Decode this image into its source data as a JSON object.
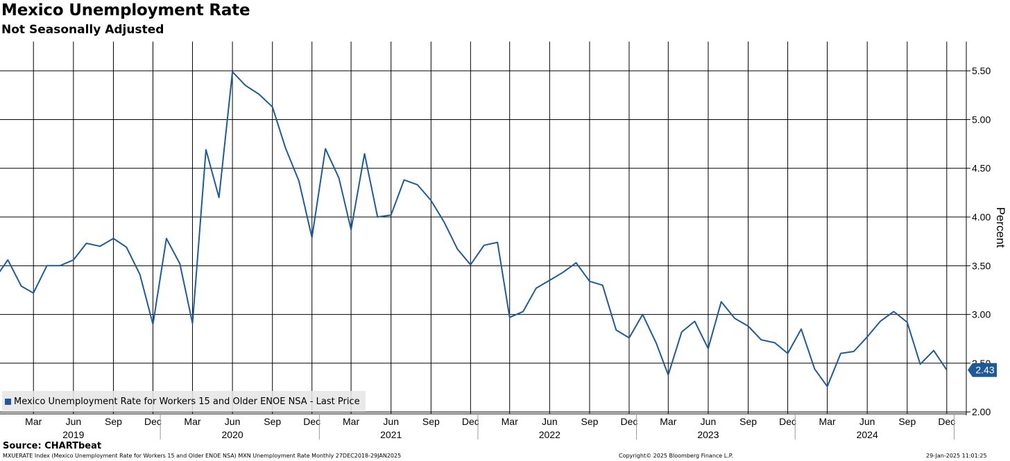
{
  "header": {
    "title": "Mexico Unemployment Rate",
    "subtitle": "Not Seasonally Adjusted"
  },
  "footer": {
    "source": "Source: CHARTbeat",
    "description": "MXUERATE Index (Mexico Unemployment Rate for Workers 15 and Older ENOE NSA) MXN Unemployment Rate  Monthly 27DEC2018-29JAN2025",
    "copyright": "Copyright© 2025 Bloomberg Finance L.P.",
    "timestamp": "29-Jan-2025 11:01:25"
  },
  "colors": {
    "series": "#1f5a96",
    "grid": "#000000",
    "background": "#ffffff"
  },
  "chart_data": {
    "type": "line",
    "ylabel": "Percent",
    "ylim": [
      1.98,
      5.8
    ],
    "xlim": [
      "2018-12-28",
      "2025-01-29"
    ],
    "y_ticks": [
      2.0,
      2.5,
      3.0,
      3.5,
      4.0,
      4.5,
      5.0,
      5.5
    ],
    "y_tick_labels": [
      "2.00",
      "2.50",
      "3.00",
      "3.50",
      "4.00",
      "4.50",
      "5.00",
      "5.50"
    ],
    "grid": true,
    "legend_position": "bottom-left",
    "x_month_ticks": [
      {
        "label": "Mar",
        "date": "2019-03-15"
      },
      {
        "label": "Jun",
        "date": "2019-06-15"
      },
      {
        "label": "Sep",
        "date": "2019-09-15"
      },
      {
        "label": "Dec",
        "date": "2019-12-15"
      },
      {
        "label": "Mar",
        "date": "2020-03-15"
      },
      {
        "label": "Jun",
        "date": "2020-06-15"
      },
      {
        "label": "Sep",
        "date": "2020-09-15"
      },
      {
        "label": "Dec",
        "date": "2020-12-15"
      },
      {
        "label": "Mar",
        "date": "2021-03-15"
      },
      {
        "label": "Jun",
        "date": "2021-06-15"
      },
      {
        "label": "Sep",
        "date": "2021-09-15"
      },
      {
        "label": "Dec",
        "date": "2021-12-15"
      },
      {
        "label": "Mar",
        "date": "2022-03-15"
      },
      {
        "label": "Jun",
        "date": "2022-06-15"
      },
      {
        "label": "Sep",
        "date": "2022-09-15"
      },
      {
        "label": "Dec",
        "date": "2022-12-15"
      },
      {
        "label": "Mar",
        "date": "2023-03-15"
      },
      {
        "label": "Jun",
        "date": "2023-06-15"
      },
      {
        "label": "Sep",
        "date": "2023-09-15"
      },
      {
        "label": "Dec",
        "date": "2023-12-15"
      },
      {
        "label": "Mar",
        "date": "2024-03-15"
      },
      {
        "label": "Jun",
        "date": "2024-06-15"
      },
      {
        "label": "Sep",
        "date": "2024-09-15"
      },
      {
        "label": "Dec",
        "date": "2024-12-15"
      }
    ],
    "x_year_labels": [
      {
        "label": "2019",
        "date": "2019-06-15"
      },
      {
        "label": "2020",
        "date": "2020-06-15"
      },
      {
        "label": "2021",
        "date": "2021-06-15"
      },
      {
        "label": "2022",
        "date": "2022-06-15"
      },
      {
        "label": "2023",
        "date": "2023-06-15"
      },
      {
        "label": "2024",
        "date": "2024-06-15"
      }
    ],
    "x_year_boundaries": [
      "2020-01-01",
      "2021-01-01",
      "2022-01-01",
      "2023-01-01",
      "2024-01-01",
      "2025-01-01"
    ],
    "series": [
      {
        "name": "Mexico Unemployment Rate for Workers 15 and Older ENOE NSA - Last Price",
        "last_value_label": "2.43",
        "x": [
          "2018-12-15",
          "2019-01-15",
          "2019-02-15",
          "2019-03-15",
          "2019-04-15",
          "2019-05-15",
          "2019-06-15",
          "2019-07-15",
          "2019-08-15",
          "2019-09-15",
          "2019-10-15",
          "2019-11-15",
          "2019-12-15",
          "2020-01-15",
          "2020-02-15",
          "2020-03-15",
          "2020-04-15",
          "2020-05-15",
          "2020-06-15",
          "2020-07-15",
          "2020-08-15",
          "2020-09-15",
          "2020-10-15",
          "2020-11-15",
          "2020-12-15",
          "2021-01-15",
          "2021-02-15",
          "2021-03-15",
          "2021-04-15",
          "2021-05-15",
          "2021-06-15",
          "2021-07-15",
          "2021-08-15",
          "2021-09-15",
          "2021-10-15",
          "2021-11-15",
          "2021-12-15",
          "2022-01-15",
          "2022-02-15",
          "2022-03-15",
          "2022-04-15",
          "2022-05-15",
          "2022-06-15",
          "2022-07-15",
          "2022-08-15",
          "2022-09-15",
          "2022-10-15",
          "2022-11-15",
          "2022-12-15",
          "2023-01-15",
          "2023-02-15",
          "2023-03-15",
          "2023-04-15",
          "2023-05-15",
          "2023-06-15",
          "2023-07-15",
          "2023-08-15",
          "2023-09-15",
          "2023-10-15",
          "2023-11-15",
          "2023-12-15",
          "2024-01-15",
          "2024-02-15",
          "2024-03-15",
          "2024-04-15",
          "2024-05-15",
          "2024-06-15",
          "2024-07-15",
          "2024-08-15",
          "2024-09-15",
          "2024-10-15",
          "2024-11-15",
          "2024-12-15"
        ],
        "values": [
          3.36,
          3.56,
          3.29,
          3.22,
          3.5,
          3.5,
          3.56,
          3.73,
          3.7,
          3.78,
          3.69,
          3.41,
          2.9,
          3.78,
          3.52,
          2.91,
          4.69,
          4.2,
          5.49,
          5.35,
          5.26,
          5.13,
          4.71,
          4.37,
          3.79,
          4.7,
          4.4,
          3.87,
          4.65,
          4.0,
          4.02,
          4.38,
          4.33,
          4.17,
          3.95,
          3.67,
          3.51,
          3.71,
          3.74,
          2.97,
          3.03,
          3.27,
          3.35,
          3.43,
          3.53,
          3.34,
          3.3,
          2.84,
          2.76,
          3.0,
          2.71,
          2.38,
          2.82,
          2.93,
          2.65,
          3.13,
          2.96,
          2.88,
          2.74,
          2.71,
          2.6,
          2.85,
          2.44,
          2.26,
          2.6,
          2.62,
          2.77,
          2.93,
          3.03,
          2.92,
          2.49,
          2.63,
          2.43
        ]
      }
    ]
  }
}
